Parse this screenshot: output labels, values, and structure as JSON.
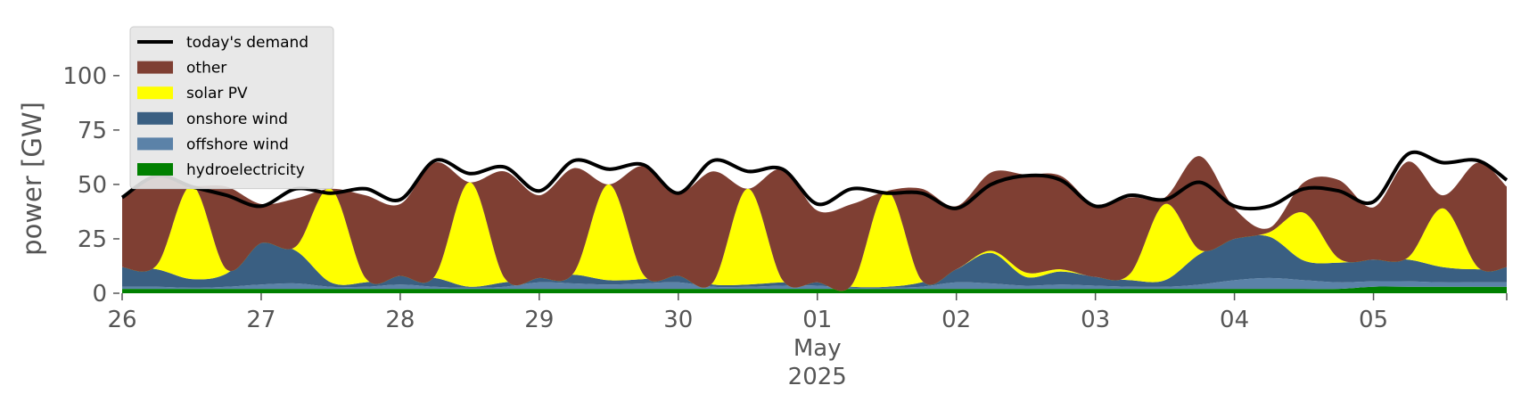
{
  "chart_data": {
    "type": "area",
    "title": "",
    "xlabel": "",
    "ylabel": "power [GW]",
    "ylim": [
      0,
      120
    ],
    "yticks": [
      0,
      25,
      50,
      75,
      100
    ],
    "x_tick_labels": [
      "26",
      "27",
      "28",
      "29",
      "30",
      "01",
      "02",
      "03",
      "04",
      "05"
    ],
    "x_month_label": "May",
    "x_year_label": "2025",
    "xlim": [
      "2025-04-26 00:00",
      "2025-05-05 23:00"
    ],
    "x": [
      "2025-04-26 00:00",
      "2025-04-26 06:00",
      "2025-04-26 12:00",
      "2025-04-26 18:00",
      "2025-04-27 00:00",
      "2025-04-27 06:00",
      "2025-04-27 12:00",
      "2025-04-27 18:00",
      "2025-04-28 00:00",
      "2025-04-28 06:00",
      "2025-04-28 12:00",
      "2025-04-28 18:00",
      "2025-04-29 00:00",
      "2025-04-29 06:00",
      "2025-04-29 12:00",
      "2025-04-29 18:00",
      "2025-04-30 00:00",
      "2025-04-30 06:00",
      "2025-04-30 12:00",
      "2025-04-30 18:00",
      "2025-05-01 00:00",
      "2025-05-01 06:00",
      "2025-05-01 12:00",
      "2025-05-01 18:00",
      "2025-05-02 00:00",
      "2025-05-02 06:00",
      "2025-05-02 12:00",
      "2025-05-02 18:00",
      "2025-05-03 00:00",
      "2025-05-03 06:00",
      "2025-05-03 12:00",
      "2025-05-03 18:00",
      "2025-05-04 00:00",
      "2025-05-04 06:00",
      "2025-05-04 12:00",
      "2025-05-04 18:00",
      "2025-05-05 00:00",
      "2025-05-05 06:00",
      "2025-05-05 12:00",
      "2025-05-05 18:00",
      "2025-05-05 23:00"
    ],
    "stack_series": [
      {
        "name": "hydroelectricity",
        "color": "#008000",
        "values": [
          2,
          2,
          2,
          2,
          2,
          2,
          2,
          2,
          2,
          2,
          2,
          2,
          2,
          2,
          2,
          2,
          2,
          2,
          2,
          2,
          2,
          2,
          2,
          2,
          2,
          2,
          2,
          2,
          2,
          2,
          2,
          2,
          2,
          2,
          2,
          2,
          3,
          3,
          3,
          3,
          3
        ]
      },
      {
        "name": "offshore wind",
        "color": "#5b82a8",
        "values": [
          1,
          1,
          0.5,
          1,
          2,
          2.5,
          1,
          1,
          2,
          1,
          0.5,
          1,
          3,
          2.5,
          2,
          2.5,
          3,
          1,
          1,
          1.5,
          1.5,
          0.5,
          0.5,
          1,
          3,
          2.5,
          1.5,
          2,
          1.5,
          1,
          1,
          2,
          4,
          5,
          4,
          3,
          2.5,
          2.5,
          2,
          2,
          2
        ]
      },
      {
        "name": "onshore wind",
        "color": "#3a5f82",
        "values": [
          9,
          8,
          4,
          6,
          19,
          15,
          2,
          2,
          4,
          4,
          0.5,
          2,
          2,
          4,
          2,
          2,
          3,
          1,
          1,
          1.5,
          1.5,
          0.5,
          0.5,
          2,
          6,
          14,
          4,
          6,
          4,
          3,
          3,
          14,
          19,
          19,
          9,
          9,
          10,
          10,
          7,
          6,
          7
        ]
      },
      {
        "name": "solar PV",
        "color": "#ffff00",
        "values": [
          0,
          2,
          43,
          2,
          0,
          2,
          43,
          2,
          0,
          1,
          48,
          2,
          0,
          1,
          44,
          2,
          0,
          1,
          44,
          1,
          0,
          1,
          44,
          1,
          0,
          1,
          2,
          1,
          0,
          3,
          35,
          2,
          0,
          2,
          22,
          2,
          0,
          1,
          27,
          1,
          0
        ]
      },
      {
        "name": "other",
        "color": "#7f3f33",
        "values": [
          32,
          41,
          0,
          38,
          18,
          22,
          0,
          38,
          33,
          52,
          0,
          49,
          38,
          48,
          0,
          50,
          38,
          51,
          0,
          51,
          33,
          37,
          0,
          42,
          29,
          36,
          45,
          43,
          33,
          35,
          3,
          43,
          14,
          2,
          14,
          36,
          24,
          44,
          6,
          48,
          37
        ]
      }
    ],
    "line_series": {
      "name": "today's demand",
      "color": "#000000",
      "values": [
        44,
        54,
        49,
        45,
        40,
        48,
        46,
        48,
        43,
        61,
        55,
        58,
        47,
        61,
        57,
        59,
        46,
        61,
        56,
        57,
        41,
        48,
        46,
        46,
        39,
        50,
        54,
        52,
        40,
        45,
        43,
        51,
        40,
        40,
        48,
        47,
        42,
        64,
        60,
        61,
        52
      ]
    },
    "legend": {
      "position": "upper-left",
      "entries": [
        "today's demand",
        "other",
        "solar PV",
        "onshore wind",
        "offshore wind",
        "hydroelectricity"
      ]
    },
    "grid": false,
    "background": "#ffffff"
  }
}
